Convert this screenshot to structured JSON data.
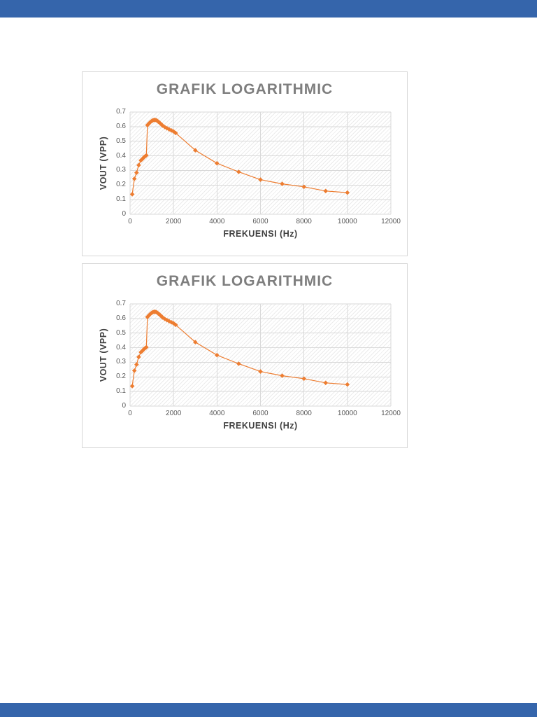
{
  "page": {
    "background_color": "#ffffff",
    "viewer_chrome": {
      "top_bar_color": "#3565ab",
      "bottom_bar_color": "#3565ab"
    }
  },
  "chart_data": [
    {
      "type": "line",
      "title": "GRAFIK LOGARITHMIC",
      "xlabel": "FREKUENSI (Hz)",
      "ylabel": "VOUT (VPP)",
      "xlim": [
        0,
        12000
      ],
      "ylim": [
        0,
        0.7
      ],
      "x_ticks": [
        0,
        2000,
        4000,
        6000,
        8000,
        10000,
        12000
      ],
      "y_ticks": [
        0,
        0.1,
        0.2,
        0.3,
        0.4,
        0.5,
        0.6,
        0.7
      ],
      "grid": true,
      "grid_color": "#d9d9d9",
      "plot_area_pattern": "light-diagonal-hatch",
      "series_color": "#ED7D31",
      "marker": "diamond",
      "legend": "none",
      "x": [
        100,
        200,
        300,
        400,
        500,
        550,
        600,
        650,
        700,
        750,
        800,
        850,
        900,
        950,
        1000,
        1050,
        1100,
        1150,
        1200,
        1250,
        1300,
        1350,
        1400,
        1450,
        1500,
        1600,
        1700,
        1800,
        1900,
        2000,
        2100,
        3000,
        4000,
        5000,
        6000,
        7000,
        8000,
        9000,
        10000
      ],
      "y": [
        0.137,
        0.243,
        0.285,
        0.336,
        0.369,
        0.376,
        0.384,
        0.392,
        0.398,
        0.403,
        0.61,
        0.618,
        0.626,
        0.633,
        0.639,
        0.643,
        0.646,
        0.646,
        0.644,
        0.64,
        0.634,
        0.628,
        0.621,
        0.614,
        0.607,
        0.597,
        0.589,
        0.581,
        0.574,
        0.567,
        0.556,
        0.438,
        0.349,
        0.29,
        0.237,
        0.208,
        0.188,
        0.159,
        0.148
      ]
    },
    {
      "type": "line",
      "title": "GRAFIK LOGARITHMIC",
      "xlabel": "FREKUENSI (Hz)",
      "ylabel": "VOUT (VPP)",
      "xlim": [
        0,
        12000
      ],
      "ylim": [
        0,
        0.7
      ],
      "x_ticks": [
        0,
        2000,
        4000,
        6000,
        8000,
        10000,
        12000
      ],
      "y_ticks": [
        0,
        0.1,
        0.2,
        0.3,
        0.4,
        0.5,
        0.6,
        0.7
      ],
      "grid": true,
      "grid_color": "#d9d9d9",
      "plot_area_pattern": "light-diagonal-hatch",
      "series_color": "#ED7D31",
      "marker": "diamond",
      "legend": "none",
      "x": [
        100,
        200,
        300,
        400,
        500,
        550,
        600,
        650,
        700,
        750,
        800,
        850,
        900,
        950,
        1000,
        1050,
        1100,
        1150,
        1200,
        1250,
        1300,
        1350,
        1400,
        1450,
        1500,
        1600,
        1700,
        1800,
        1900,
        2000,
        2100,
        3000,
        4000,
        5000,
        6000,
        7000,
        8000,
        9000,
        10000
      ],
      "y": [
        0.137,
        0.243,
        0.285,
        0.336,
        0.369,
        0.376,
        0.384,
        0.392,
        0.398,
        0.403,
        0.61,
        0.618,
        0.626,
        0.633,
        0.639,
        0.643,
        0.646,
        0.646,
        0.644,
        0.64,
        0.634,
        0.628,
        0.621,
        0.614,
        0.607,
        0.597,
        0.589,
        0.581,
        0.574,
        0.567,
        0.556,
        0.438,
        0.349,
        0.29,
        0.237,
        0.208,
        0.188,
        0.159,
        0.148
      ]
    }
  ]
}
